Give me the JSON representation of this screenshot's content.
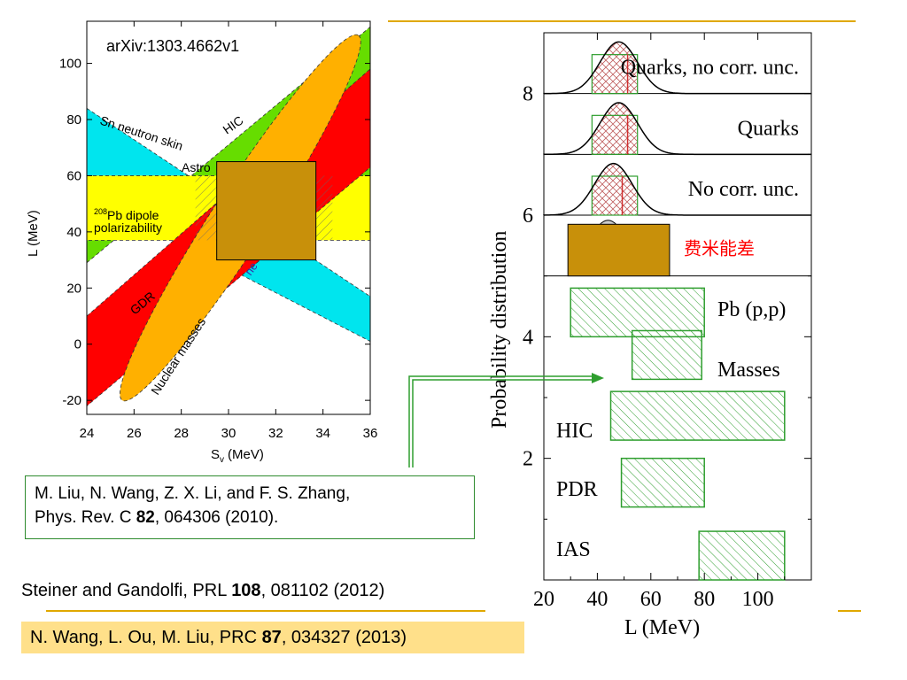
{
  "slide": {
    "colors": {
      "accent_line": "#e0a800",
      "highlight_bg": "#ffe08a",
      "box_border": "#2e8b2e",
      "tan": "#c8900a"
    }
  },
  "left_chart": {
    "arxiv_label": "arXiv:1303.4662v1",
    "region_labels": {
      "sn": "Sn neutron skin",
      "hic": "HIC",
      "astro": "Astro",
      "pb_dipole_sup": "208",
      "pb_dipole_line1": "Pb dipole",
      "pb_dipole_line2": "polarizability",
      "gdr": "GDR",
      "nuclear_masses": "Nuclear masses",
      "partial": "ne"
    }
  },
  "chart_data": [
    {
      "type": "area",
      "xlabel": "S",
      "xlabel_sub": "v",
      "xlabel_unit": "(MeV)",
      "ylabel": "L (MeV)",
      "xlim": [
        24,
        36
      ],
      "ylim": [
        -25,
        115
      ],
      "xticks": [
        24,
        26,
        28,
        30,
        32,
        34,
        36
      ],
      "yticks": [
        -20,
        0,
        20,
        40,
        60,
        80,
        100
      ],
      "series": [
        {
          "name": "Sn neutron skin",
          "color": "#00e5ee",
          "polygon": [
            [
              24,
              84
            ],
            [
              36,
              17
            ],
            [
              36,
              1
            ],
            [
              24,
              53
            ]
          ]
        },
        {
          "name": "HIC",
          "color": "#66dd00",
          "polygon": [
            [
              24,
              29
            ],
            [
              36,
              113
            ],
            [
              36,
              60
            ],
            [
              24,
              49
            ]
          ]
        },
        {
          "name": "208Pb dipole polarizability",
          "color": "#ffff00",
          "polygon": [
            [
              24,
              60
            ],
            [
              36,
              60
            ],
            [
              36,
              37
            ],
            [
              24,
              37
            ]
          ]
        },
        {
          "name": "GDR",
          "color": "#ff0000",
          "polygon": [
            [
              24,
              10
            ],
            [
              36,
              98
            ],
            [
              36,
              63
            ],
            [
              24,
              -22
            ]
          ]
        },
        {
          "name": "Nuclear masses",
          "color": "#ffb000",
          "ellipse": {
            "center": [
              30.5,
              45
            ],
            "semi_major_end": [
              35.5,
              110
            ],
            "width_L": 18
          }
        }
      ],
      "overlay_box": {
        "x": [
          29.5,
          33.7
        ],
        "y": [
          30,
          65
        ],
        "color": "#c8900a"
      }
    },
    {
      "type": "bar",
      "xlabel": "L (MeV)",
      "ylabel": "Probability distribution",
      "xlim": [
        20,
        120
      ],
      "ylim": [
        0,
        9
      ],
      "xticks": [
        20,
        40,
        60,
        80,
        100
      ],
      "yticks": [
        2,
        4,
        6,
        8
      ],
      "constraints": [
        {
          "label": "IAS",
          "range": [
            78,
            110
          ],
          "y": [
            0,
            0.8
          ]
        },
        {
          "label": "PDR",
          "range": [
            49,
            80
          ],
          "y": [
            1.2,
            2.0
          ]
        },
        {
          "label": "HIC",
          "range": [
            45,
            110
          ],
          "y": [
            2.3,
            3.1
          ]
        },
        {
          "label": "Masses",
          "range": [
            53,
            79
          ],
          "y": [
            3.3,
            4.1
          ]
        },
        {
          "label": "Pb (p,p)",
          "range": [
            30,
            80
          ],
          "y": [
            4.0,
            4.8
          ]
        }
      ],
      "panels": [
        {
          "label": "Quarks, no corr. unc.",
          "baseline": 8.0,
          "peak": 8.85,
          "center": 48,
          "band": [
            38,
            55
          ]
        },
        {
          "label": "Quarks",
          "baseline": 7.0,
          "peak": 7.85,
          "center": 48,
          "band": [
            38,
            55
          ]
        },
        {
          "label": "No corr. unc.",
          "baseline": 6.0,
          "peak": 6.85,
          "center": 46,
          "band": [
            38,
            55
          ]
        },
        {
          "label": "费米能差",
          "baseline": 5.0,
          "center": 44,
          "box": [
            29,
            67
          ],
          "box_y": [
            5.0,
            5.85
          ],
          "box_color": "#c8900a",
          "label_color": "#ff0000"
        }
      ]
    }
  ],
  "refs": {
    "liu_line1": "M. Liu, N. Wang, Z. X. Li, and F. S. Zhang,",
    "liu_line2_a": "Phys. Rev. C ",
    "liu_line2_b": "82",
    "liu_line2_c": ", 064306 (2010).",
    "steiner_a": "Steiner and Gandolfi, PRL ",
    "steiner_b": "108",
    "steiner_c": ", 081102 (2012)",
    "wang_a": "N. Wang, L. Ou, M. Liu, PRC ",
    "wang_b": "87",
    "wang_c": ", 034327 (2013)"
  }
}
